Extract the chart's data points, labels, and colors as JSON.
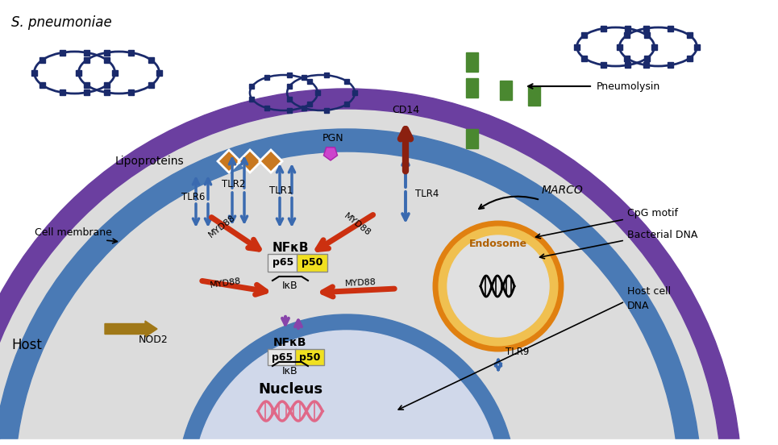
{
  "bg_color": "#ffffff",
  "cell_membrane_color": "#6B3FA0",
  "cell_inner_ring_color": "#4a7ab5",
  "cytoplasm_color": "#dcdcdc",
  "bacteria_color": "#1a2a6b",
  "lipoproteins_color": "#c87820",
  "tlr_arrow_color": "#3a6ab0",
  "myd88_arrow_color": "#cc3010",
  "nod2_color": "#a07818",
  "pgn_color": "#cc44cc",
  "cd14_tlr4_color": "#8b2010",
  "green_rect_color": "#4a8830",
  "purple_arrow_color": "#8844aa",
  "endosome_outer_color": "#e08010",
  "endosome_fill_color": "#f0c050",
  "endosome_inner_color": "#e0e0e0",
  "labels": {
    "s_pneumoniae": "S. pneumoniae",
    "lipoproteins": "Lipoproteins",
    "tlr6": "TLR6",
    "tlr2": "TLR2",
    "tlr1": "TLR1",
    "pgn": "PGN",
    "cd14": "CD14",
    "tlr4": "TLR4",
    "marco": "MARCO",
    "pneumolysin": "Pneumolysin",
    "cpg_motif": "CpG motif",
    "bacterial_dna": "Bacterial DNA",
    "host_cell_dna": "Host cell\nDNA",
    "endosome": "Endosome",
    "tlr9": "TLR9",
    "myd88": "MYD88",
    "nfkb": "NFκB",
    "p65": "p65",
    "p50": "p50",
    "ikb": "IκB",
    "nucleus": "Nucleus",
    "nod2": "NOD2",
    "cell_membrane": "Cell membrane",
    "host": "Host"
  }
}
